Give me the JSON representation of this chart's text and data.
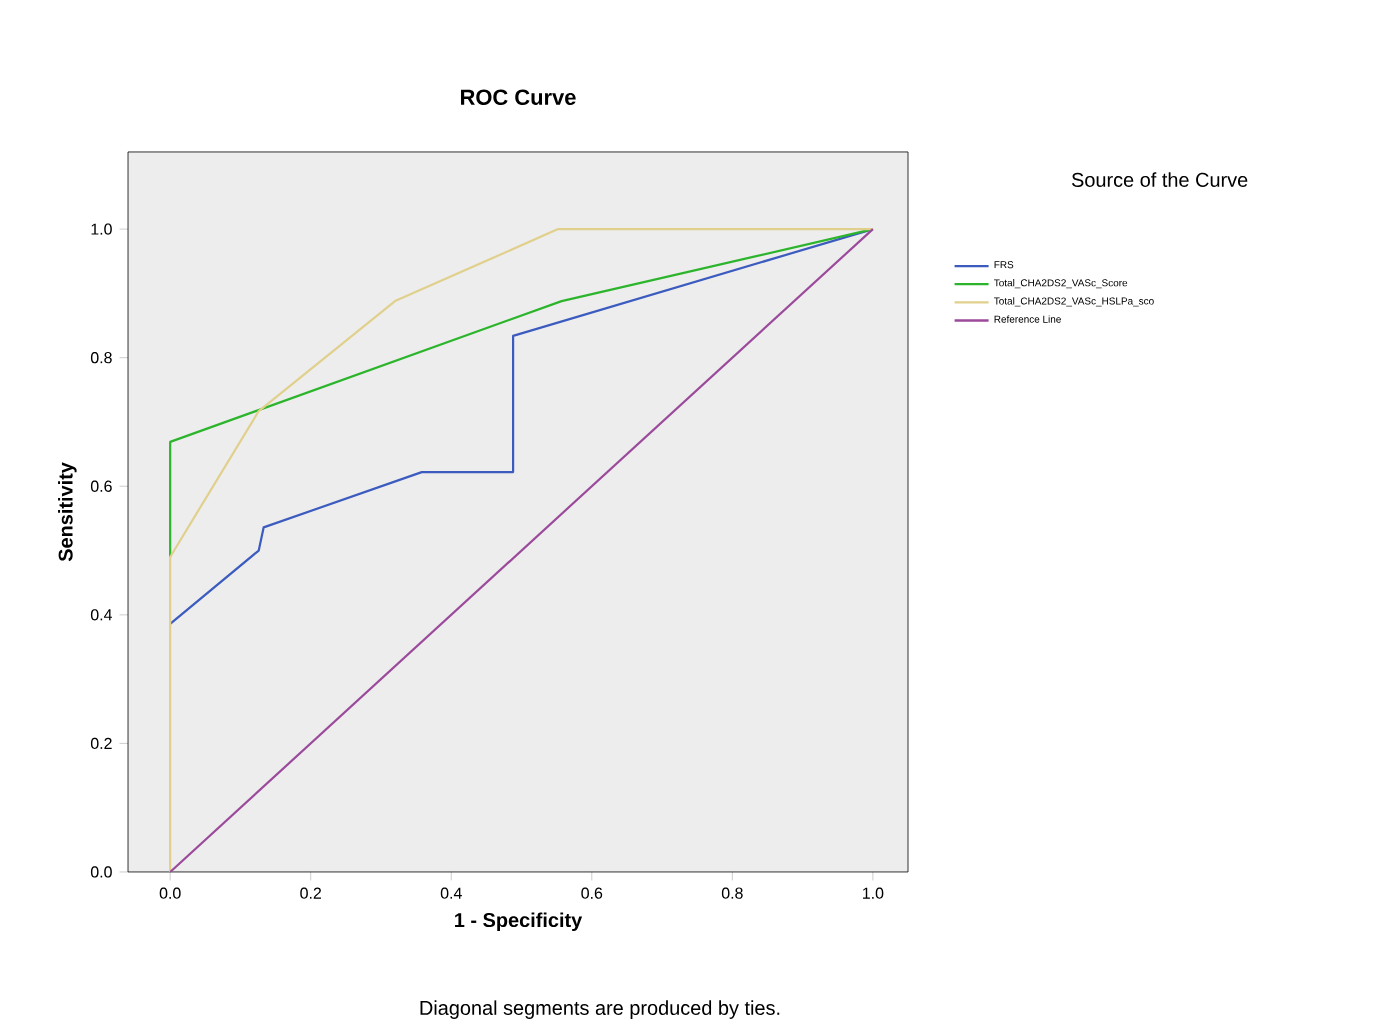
{
  "chart_data": {
    "type": "line",
    "title": "ROC Curve",
    "xlabel": "1 - Specificity",
    "ylabel": "Sensitivity",
    "legend_title": "Source of the Curve",
    "legend": "right",
    "marker": "none",
    "line_style": "solid",
    "grid": false,
    "xlim": [
      -0.06,
      1.05
    ],
    "ylim": [
      0,
      1.12
    ],
    "xticks": [
      {
        "value": 0,
        "label": "0.0"
      },
      {
        "value": 0.2,
        "label": "0.2"
      },
      {
        "value": 0.4,
        "label": "0.4"
      },
      {
        "value": 0.6,
        "label": "0.6"
      },
      {
        "value": 0.8,
        "label": "0.8"
      },
      {
        "value": 1,
        "label": "1.0"
      }
    ],
    "yticks": [
      {
        "value": 0,
        "label": "0.0"
      },
      {
        "value": 0.2,
        "label": "0.2"
      },
      {
        "value": 0.4,
        "label": "0.4"
      },
      {
        "value": 0.6,
        "label": "0.6"
      },
      {
        "value": 0.8,
        "label": "0.8"
      },
      {
        "value": 1,
        "label": "1.0"
      }
    ],
    "series": [
      {
        "name": "FRS",
        "color": "#3c5bbf",
        "x": [
          0,
          0.126,
          0.133,
          0.358,
          0.488,
          0.488,
          1
        ],
        "values": [
          0.386,
          0.5,
          0.536,
          0.622,
          0.622,
          0.834,
          1
        ]
      },
      {
        "name": "Total_CHA2DS2_VASc_Score",
        "color": "#2cb52c",
        "x": [
          0,
          0,
          0.557,
          1
        ],
        "values": [
          0.49,
          0.669,
          0.888,
          1
        ]
      },
      {
        "name": "Total_CHA2DS2_VASc_HSLPa_sco",
        "color": "#e0d08c",
        "x": [
          0,
          0,
          0.126,
          0.32,
          0.552,
          1
        ],
        "values": [
          0,
          0.49,
          0.717,
          0.888,
          1,
          1
        ]
      },
      {
        "name": "Reference Line",
        "color": "#9b4a9b",
        "x": [
          0,
          1
        ],
        "values": [
          0,
          1
        ]
      }
    ],
    "annotations": [
      "Diagonal segments are produced by ties."
    ]
  }
}
